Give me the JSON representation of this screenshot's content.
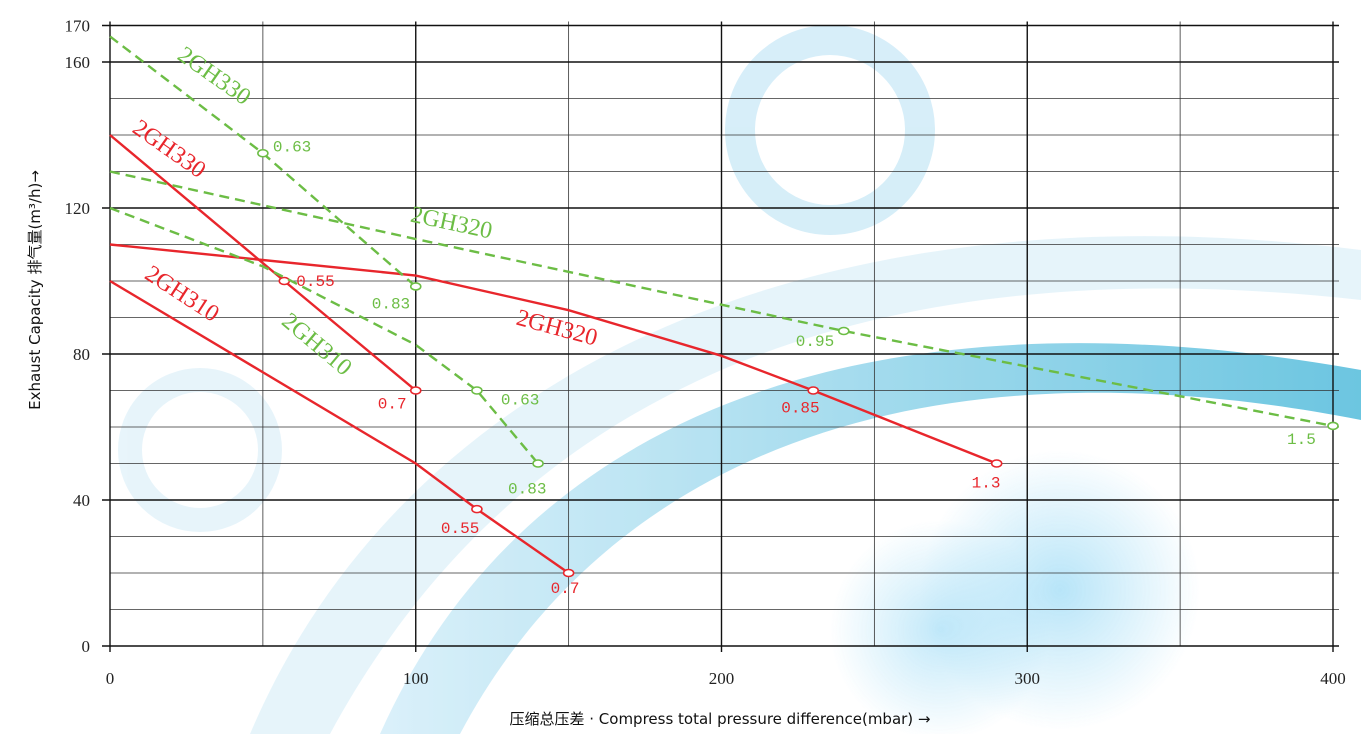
{
  "chart_data": {
    "type": "line",
    "x_label": "压缩总压差 · Compress total pressure difference(mbar) →",
    "y_label": "Exhaust Capacity 排气量(m³/h)→",
    "xlim": [
      0,
      400
    ],
    "ylim": [
      0,
      170
    ],
    "xticks": [
      0,
      100,
      200,
      300,
      400
    ],
    "yticks": [
      0,
      40,
      80,
      120,
      160,
      170
    ],
    "minor_xticks": [
      50,
      150,
      250,
      350
    ],
    "minor_yticks": [
      10,
      20,
      30,
      50,
      60,
      70,
      90,
      100,
      110,
      130,
      140,
      150
    ],
    "grid": true,
    "series": [
      {
        "name": "2GH330",
        "color": "#e8262c",
        "dash": false,
        "x": [
          0,
          57,
          100
        ],
        "values": [
          140,
          100,
          70
        ],
        "point_labels": [
          null,
          "0.55",
          "0.7"
        ]
      },
      {
        "name": "2GH320",
        "color": "#e8262c",
        "dash": false,
        "x": [
          0,
          100,
          150,
          200,
          230,
          290
        ],
        "values": [
          110,
          101.5,
          92,
          79.5,
          70,
          50
        ],
        "point_labels": [
          null,
          null,
          null,
          null,
          "0.85",
          "1.3"
        ]
      },
      {
        "name": "2GH310",
        "color": "#e8262c",
        "dash": false,
        "x": [
          0,
          50,
          100,
          120,
          150
        ],
        "values": [
          100,
          75,
          50,
          37.5,
          20
        ],
        "point_labels": [
          null,
          null,
          null,
          "0.55",
          "0.7"
        ]
      },
      {
        "name": "2GH330",
        "color": "#6cbd45",
        "dash": true,
        "x": [
          0,
          50,
          100
        ],
        "values": [
          167,
          135,
          98.5
        ],
        "point_labels": [
          null,
          "0.63",
          "0.83"
        ]
      },
      {
        "name": "2GH320",
        "color": "#6cbd45",
        "dash": true,
        "x": [
          0,
          100,
          240,
          400
        ],
        "values": [
          130,
          111.5,
          86.3,
          60.3
        ],
        "point_labels": [
          null,
          null,
          "0.95",
          "1.5"
        ]
      },
      {
        "name": "2GH310",
        "color": "#6cbd45",
        "dash": true,
        "x": [
          0,
          50,
          100,
          120,
          140
        ],
        "values": [
          120,
          104,
          82.5,
          70,
          50
        ],
        "point_labels": [
          null,
          null,
          null,
          "0.63",
          "0.83"
        ]
      }
    ]
  }
}
